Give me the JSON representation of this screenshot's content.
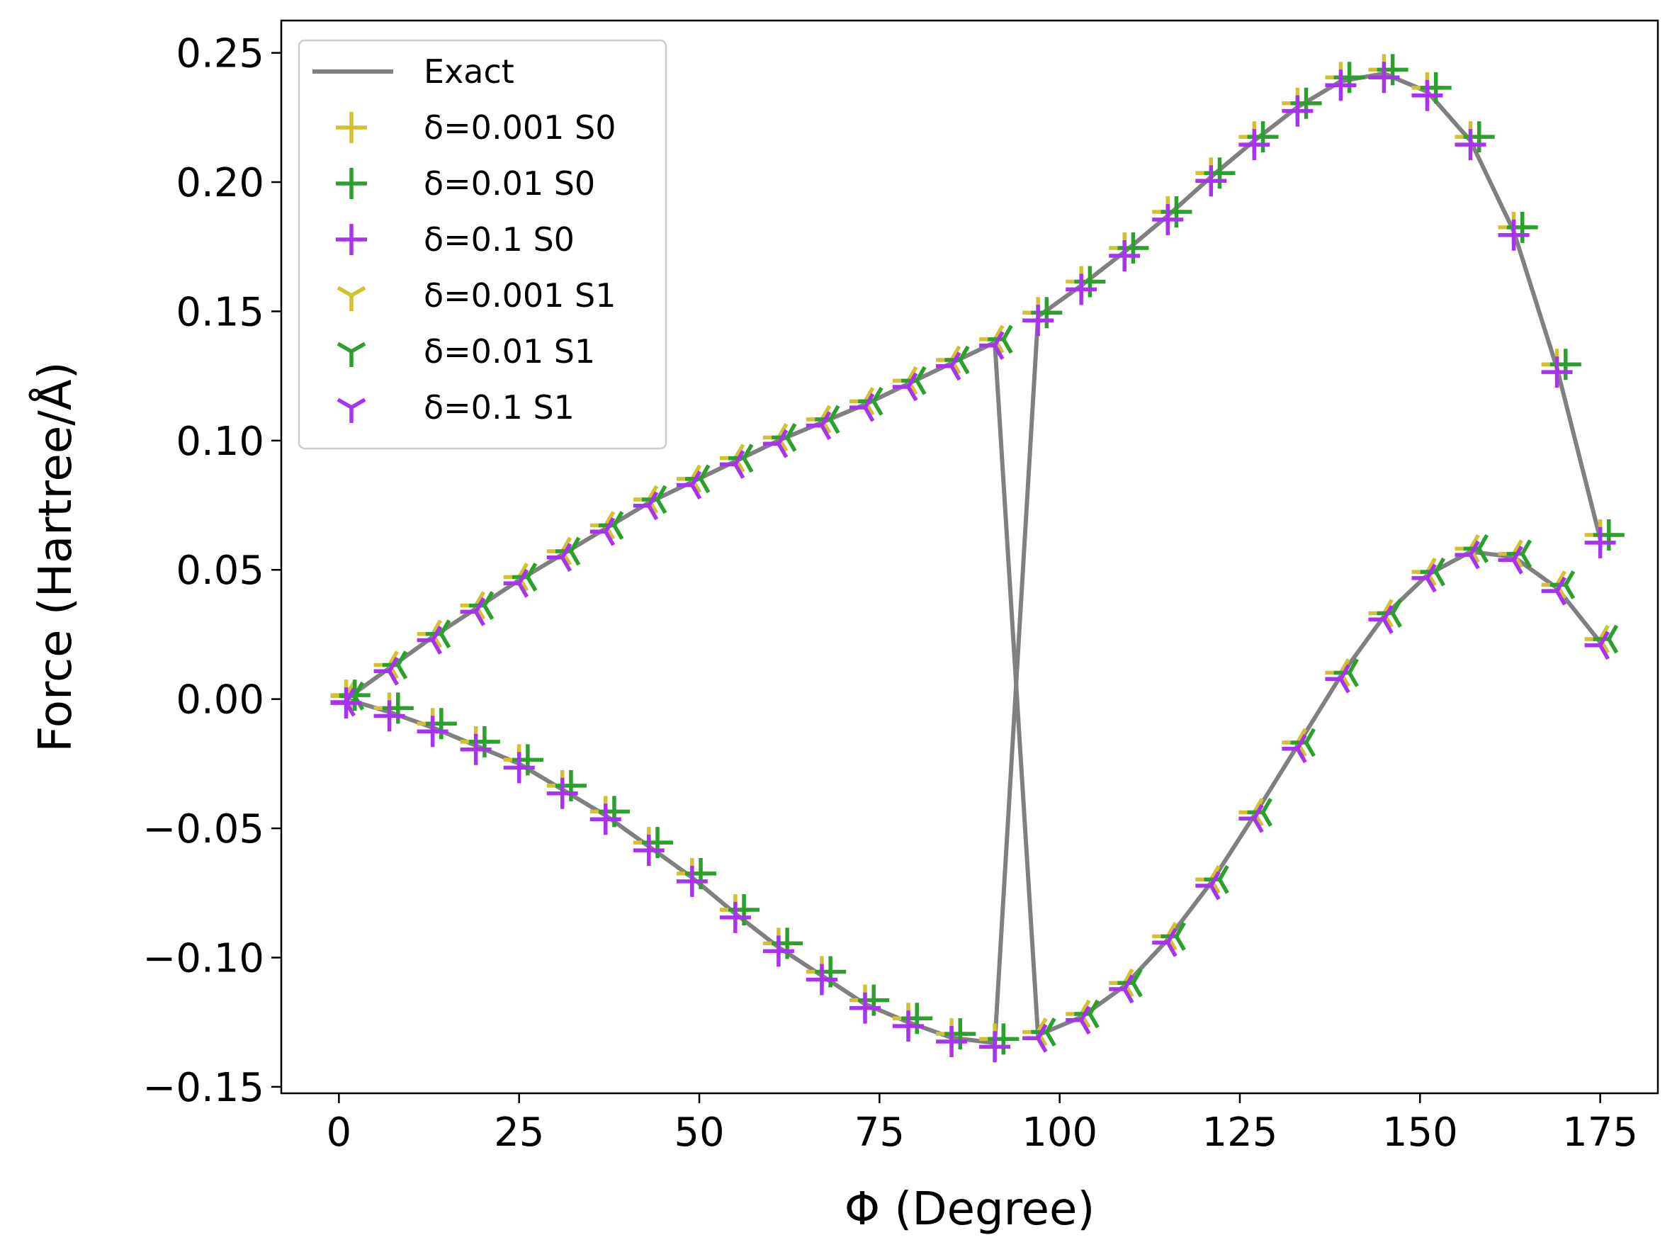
{
  "chart_data": {
    "type": "line",
    "title": "",
    "xlabel": "Φ (Degree)",
    "ylabel": "Force (Hartree/Å)",
    "xlim": [
      -8,
      183
    ],
    "ylim": [
      -0.1525,
      0.2625
    ],
    "xticks": [
      0,
      25,
      50,
      75,
      100,
      125,
      150,
      175
    ],
    "xtick_labels": [
      "0",
      "25",
      "50",
      "75",
      "100",
      "125",
      "150",
      "175"
    ],
    "yticks": [
      -0.15,
      -0.1,
      -0.05,
      0.0,
      0.05,
      0.1,
      0.15,
      0.2,
      0.25
    ],
    "ytick_labels": [
      "−0.15",
      "−0.10",
      "−0.05",
      "0.00",
      "0.05",
      "0.10",
      "0.15",
      "0.20",
      "0.25"
    ],
    "legend_position": "upper-left",
    "legend": [
      {
        "label": "Exact",
        "color": "#808080",
        "marker": "line"
      },
      {
        "label": "δ=0.001 S0",
        "color": "#d4c130",
        "marker": "plus"
      },
      {
        "label": "δ=0.01 S0",
        "color": "#2ca02c",
        "marker": "plus"
      },
      {
        "label": "δ=0.1 S0",
        "color": "#a833ee",
        "marker": "plus"
      },
      {
        "label": "δ=0.001 S1",
        "color": "#d4c130",
        "marker": "tri"
      },
      {
        "label": "δ=0.01 S1",
        "color": "#2ca02c",
        "marker": "tri"
      },
      {
        "label": "δ=0.1 S1",
        "color": "#a833ee",
        "marker": "tri"
      }
    ],
    "x": [
      1,
      7,
      13,
      19,
      25,
      31,
      37,
      43,
      49,
      55,
      61,
      67,
      73,
      79,
      85,
      91,
      97,
      103,
      109,
      115,
      121,
      127,
      133,
      139,
      145,
      151,
      157,
      163,
      169,
      175
    ],
    "series": [
      {
        "name": "Exact S0",
        "color": "#808080",
        "values": [
          0.0,
          -0.005,
          -0.011,
          -0.018,
          -0.025,
          -0.035,
          -0.045,
          -0.057,
          -0.069,
          -0.083,
          -0.096,
          -0.107,
          -0.118,
          -0.125,
          -0.131,
          -0.133,
          0.148,
          0.16,
          0.173,
          0.187,
          0.202,
          0.216,
          0.229,
          0.239,
          0.242,
          0.235,
          0.216,
          0.181,
          0.128,
          0.062
        ]
      },
      {
        "name": "Exact S1",
        "color": "#808080",
        "values": [
          0.0,
          0.012,
          0.024,
          0.035,
          0.046,
          0.056,
          0.066,
          0.076,
          0.084,
          0.092,
          0.1,
          0.107,
          0.114,
          0.122,
          0.13,
          0.138,
          -0.13,
          -0.123,
          -0.111,
          -0.093,
          -0.071,
          -0.045,
          -0.018,
          0.009,
          0.032,
          0.048,
          0.057,
          0.055,
          0.043,
          0.022
        ]
      }
    ],
    "marker_offsets": {
      "S0": {
        "δ=0.001": 0.0015,
        "δ=0.01": 0.0015,
        "δ=0.1": -0.0015
      },
      "S1": {
        "δ=0.001": 0.0012,
        "δ=0.01": 0.0012,
        "δ=0.1": -0.0012
      }
    }
  }
}
